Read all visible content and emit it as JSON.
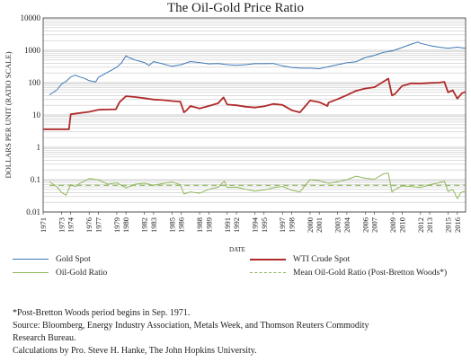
{
  "chart_data": {
    "type": "line",
    "title": "The Oil-Gold Price Ratio",
    "xlabel": "DATE",
    "ylabel": "DOLLARS PER UNIT (RATIO SCALE)",
    "yscale": "log",
    "ylim": [
      0.01,
      10000
    ],
    "xlim": [
      1971,
      2016.9
    ],
    "grid": true,
    "legend_position": "bottom",
    "y_ticks": [
      "10000",
      "1000",
      "100",
      "10",
      "1",
      "0.1",
      "0.01"
    ],
    "x_ticks": [
      "1971",
      "1973",
      "1974",
      "1976",
      "1977",
      "1979",
      "1980",
      "1982",
      "1983",
      "1985",
      "1986",
      "1988",
      "1989",
      "1991",
      "1992",
      "1994",
      "1995",
      "1997",
      "1998",
      "2000",
      "2001",
      "2003",
      "2004",
      "2006",
      "2007",
      "2009",
      "2010",
      "2012",
      "2013",
      "2015",
      "2016"
    ],
    "series": [
      {
        "name": "Gold Spot",
        "color": "#3c78b4",
        "dash": "solid",
        "x": [
          1971.7,
          1972,
          1972.5,
          1973,
          1973.5,
          1974,
          1974.5,
          1975,
          1975.5,
          1976,
          1976.7,
          1977,
          1978,
          1978.5,
          1979,
          1979.5,
          1980,
          1980.3,
          1981,
          1982,
          1982.5,
          1983,
          1984,
          1985,
          1986,
          1987,
          1988,
          1989,
          1990,
          1991,
          1992,
          1993,
          1994,
          1995,
          1996,
          1997,
          1998,
          1999,
          2000,
          2001,
          2002,
          2003,
          2004,
          2005,
          2006,
          2007,
          2008,
          2009,
          2010,
          2011,
          2011.7,
          2012,
          2013,
          2014,
          2015,
          2016,
          2016.9
        ],
        "values": [
          42,
          48,
          60,
          90,
          110,
          150,
          170,
          150,
          135,
          115,
          105,
          145,
          210,
          250,
          300,
          400,
          680,
          600,
          500,
          420,
          340,
          450,
          380,
          320,
          360,
          450,
          420,
          380,
          390,
          360,
          345,
          360,
          385,
          385,
          390,
          330,
          295,
          280,
          280,
          270,
          310,
          360,
          410,
          440,
          600,
          700,
          870,
          970,
          1220,
          1550,
          1800,
          1650,
          1400,
          1250,
          1150,
          1250,
          1150
        ]
      },
      {
        "name": "WTI Crude Spot",
        "color": "#b02a2a",
        "dash": "solid",
        "x": [
          1971,
          1973.8,
          1974,
          1975,
          1976,
          1977,
          1978,
          1978.9,
          1979.3,
          1980,
          1981,
          1982,
          1983,
          1984,
          1985,
          1985.9,
          1986.3,
          1986.6,
          1987,
          1988,
          1989,
          1990,
          1990.6,
          1991,
          1992,
          1993,
          1994,
          1995,
          1996,
          1997,
          1998,
          1998.9,
          1999.5,
          2000,
          2001,
          2001.9,
          2002,
          2003,
          2004,
          2005,
          2006,
          2007,
          2008.5,
          2008.9,
          2009.2,
          2010,
          2011,
          2012,
          2013,
          2014,
          2014.6,
          2015,
          2015.5,
          2016,
          2016.5,
          2016.9
        ],
        "values": [
          3.6,
          3.6,
          10.5,
          11.5,
          12.5,
          14.5,
          14.8,
          15,
          25,
          38,
          36,
          33,
          30,
          29,
          27,
          26,
          12,
          14,
          19,
          16,
          19,
          23,
          35,
          21,
          20,
          18,
          17,
          18.5,
          22,
          20.5,
          14,
          12,
          19,
          28,
          25,
          19,
          24,
          31,
          41,
          56,
          66,
          72,
          133,
          40,
          44,
          79,
          95,
          94,
          98,
          100,
          105,
          50,
          58,
          32,
          47,
          52
        ]
      },
      {
        "name": "Oil-Gold Ratio",
        "color": "#8fb85a",
        "dash": "solid",
        "x": [
          1971.7,
          1972,
          1972.5,
          1973,
          1973.5,
          1974,
          1974.5,
          1975,
          1976,
          1977,
          1978,
          1979,
          1980,
          1981,
          1982,
          1983,
          1984,
          1985,
          1985.9,
          1986.3,
          1987,
          1988,
          1989,
          1990,
          1990.7,
          1991,
          1992,
          1993,
          1994,
          1995,
          1996,
          1997,
          1998,
          1998.9,
          1999.5,
          2000,
          2001,
          2002,
          2003,
          2004,
          2005,
          2006,
          2007,
          2008,
          2008.5,
          2008.9,
          2009,
          2010,
          2011,
          2012,
          2013,
          2014,
          2014.6,
          2015,
          2015.5,
          2016,
          2016.4,
          2016.9
        ],
        "values": [
          0.085,
          0.075,
          0.06,
          0.04,
          0.033,
          0.07,
          0.062,
          0.077,
          0.108,
          0.1,
          0.072,
          0.08,
          0.056,
          0.072,
          0.078,
          0.067,
          0.076,
          0.084,
          0.07,
          0.036,
          0.042,
          0.038,
          0.05,
          0.058,
          0.09,
          0.057,
          0.058,
          0.05,
          0.044,
          0.048,
          0.056,
          0.062,
          0.047,
          0.042,
          0.068,
          0.1,
          0.093,
          0.077,
          0.086,
          0.1,
          0.128,
          0.11,
          0.103,
          0.153,
          0.16,
          0.041,
          0.045,
          0.065,
          0.061,
          0.057,
          0.07,
          0.08,
          0.09,
          0.043,
          0.05,
          0.026,
          0.04,
          0.045
        ]
      },
      {
        "name": "Mean Oil-Gold Ratio (Post-Bretton Woods*)",
        "color": "#8fb85a",
        "dash": "dashed",
        "x": [
          1971.7,
          2016.9
        ],
        "values": [
          0.067,
          0.067
        ]
      }
    ]
  },
  "notes": [
    "*Post-Bretton Woods period begins in Sep. 1971.",
    "Source: Bloomberg, Energy Industry Association, Metals Week, and Thomson Reuters Commodity",
    "Research Bureau.",
    "Calculations by Pro. Steve H. Hanke, The John Hopkins University."
  ]
}
